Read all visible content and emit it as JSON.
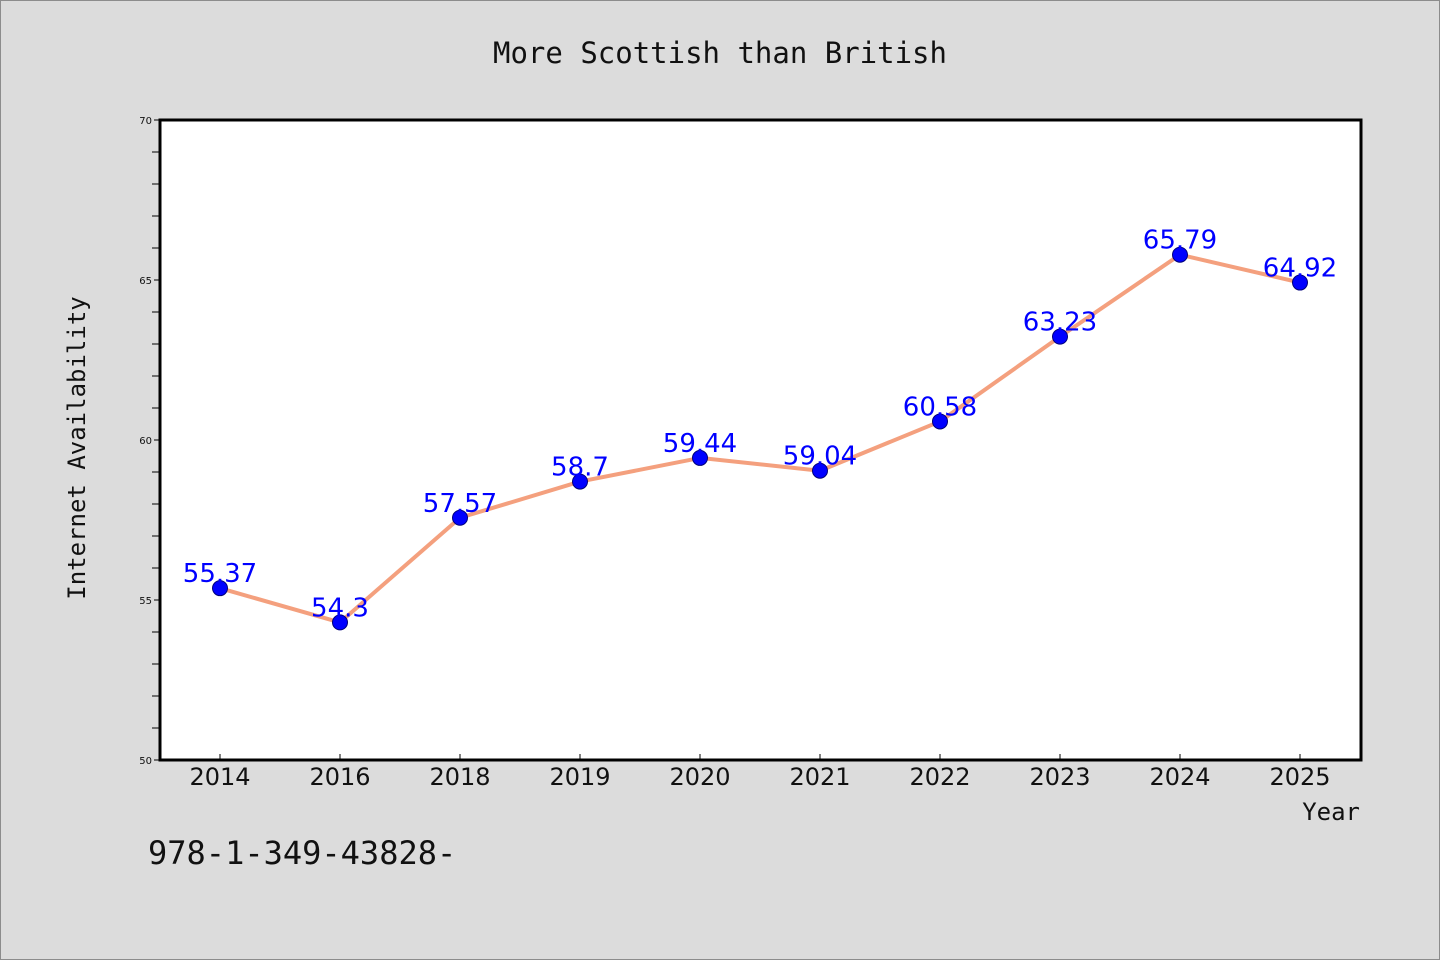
{
  "chart_data": {
    "type": "line",
    "title": "More Scottish than British",
    "xlabel": "Year",
    "ylabel": "Internet Availability",
    "categories": [
      "2014",
      "2016",
      "2018",
      "2019",
      "2020",
      "2021",
      "2022",
      "2023",
      "2024",
      "2025"
    ],
    "series": [
      {
        "values": [
          55.37,
          54.3,
          57.57,
          58.7,
          59.44,
          59.04,
          60.58,
          63.23,
          65.79,
          64.92
        ],
        "labels": [
          "55.37",
          "54.3",
          "57.57",
          "58.7",
          "59.44",
          "59.04",
          "60.58",
          "63.23",
          "65.79",
          "64.92"
        ],
        "line_color": "#f4a07e",
        "marker_color": "#0000ff"
      }
    ],
    "ylim": [
      50,
      70
    ],
    "yticks": [
      "50",
      "55",
      "60",
      "65",
      "70"
    ],
    "grid": false,
    "legend": "none"
  },
  "footnote": "978-1-349-43828-",
  "colors": {
    "background": "#dcdcdc",
    "plot_background": "#ffffff",
    "line": "#f4a07e",
    "marker": "#0000ff",
    "data_label": "#0000ff"
  }
}
